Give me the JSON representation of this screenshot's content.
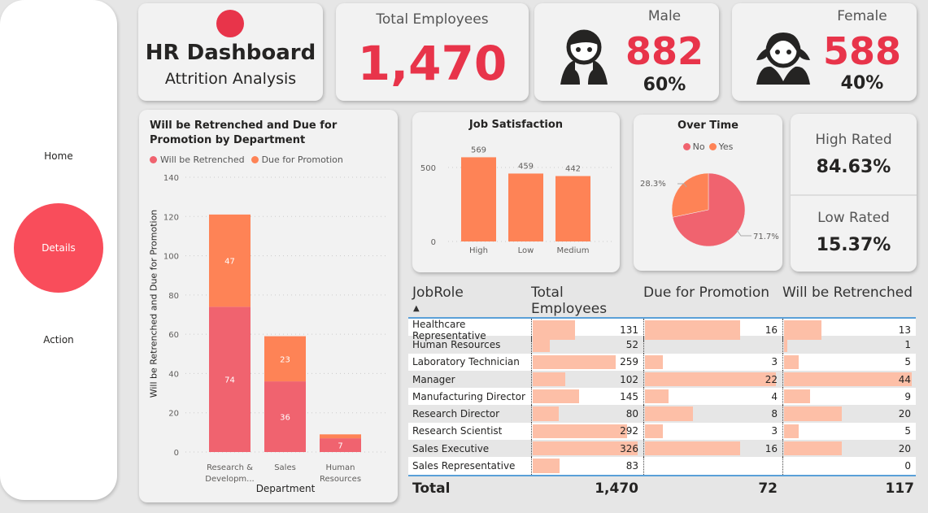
{
  "nav": {
    "home": "Home",
    "details": "Details",
    "action": "Action"
  },
  "title": {
    "main": "HR Dashboard",
    "sub": "Attrition Analysis"
  },
  "kpi": {
    "total": {
      "label": "Total Employees",
      "value": "1,470"
    },
    "male": {
      "label": "Male",
      "value": "882",
      "pct": "60%"
    },
    "female": {
      "label": "Female",
      "value": "588",
      "pct": "40%"
    },
    "high": {
      "label": "High Rated",
      "value": "84.63%"
    },
    "low": {
      "label": "Low Rated",
      "value": "15.37%"
    }
  },
  "colors": {
    "accent": "#e8344a",
    "retrenched": "#f0636f",
    "promotion": "#fe8356",
    "tablebar": "#fdbfa7"
  },
  "chart_data": [
    {
      "type": "bar",
      "stacked": true,
      "title": "Will be Retrenched and Due for Promotion by Department",
      "xlabel": "Department",
      "ylabel": "Will be Retrenched and Due for Promotion",
      "categories": [
        "Research & Developm...",
        "Sales",
        "Human Resources"
      ],
      "series": [
        {
          "name": "Will be Retrenched",
          "values": [
            74,
            36,
            7
          ]
        },
        {
          "name": "Due for Promotion",
          "values": [
            47,
            23,
            2
          ]
        }
      ],
      "ylim": [
        0,
        140
      ],
      "yticks": [
        0,
        20,
        40,
        60,
        80,
        100,
        120,
        140
      ],
      "legend": "top-left",
      "grid": true
    },
    {
      "type": "bar",
      "title": "Job Satisfaction",
      "categories": [
        "High",
        "Low",
        "Medium"
      ],
      "values": [
        569,
        459,
        442
      ],
      "yticks": [
        0,
        500
      ],
      "ylim": [
        0,
        600
      ]
    },
    {
      "type": "pie",
      "title": "Over Time",
      "labels": [
        "No",
        "Yes"
      ],
      "values": [
        71.7,
        28.3
      ],
      "data_labels": [
        "71.7%",
        "28.3%"
      ],
      "legend": "top"
    }
  ],
  "table": {
    "headers": [
      "JobRole",
      "Total Employees",
      "Due for Promotion",
      "Will be Retrenched"
    ],
    "rows": [
      [
        "Healthcare Representative",
        131,
        16,
        13
      ],
      [
        "Human Resources",
        52,
        null,
        1
      ],
      [
        "Laboratory Technician",
        259,
        3,
        5
      ],
      [
        "Manager",
        102,
        22,
        44
      ],
      [
        "Manufacturing Director",
        145,
        4,
        9
      ],
      [
        "Research Director",
        80,
        8,
        20
      ],
      [
        "Research Scientist",
        292,
        3,
        5
      ],
      [
        "Sales Executive",
        326,
        16,
        20
      ],
      [
        "Sales Representative",
        83,
        null,
        0
      ]
    ],
    "total": [
      "Total",
      "1,470",
      "72",
      "117"
    ]
  }
}
